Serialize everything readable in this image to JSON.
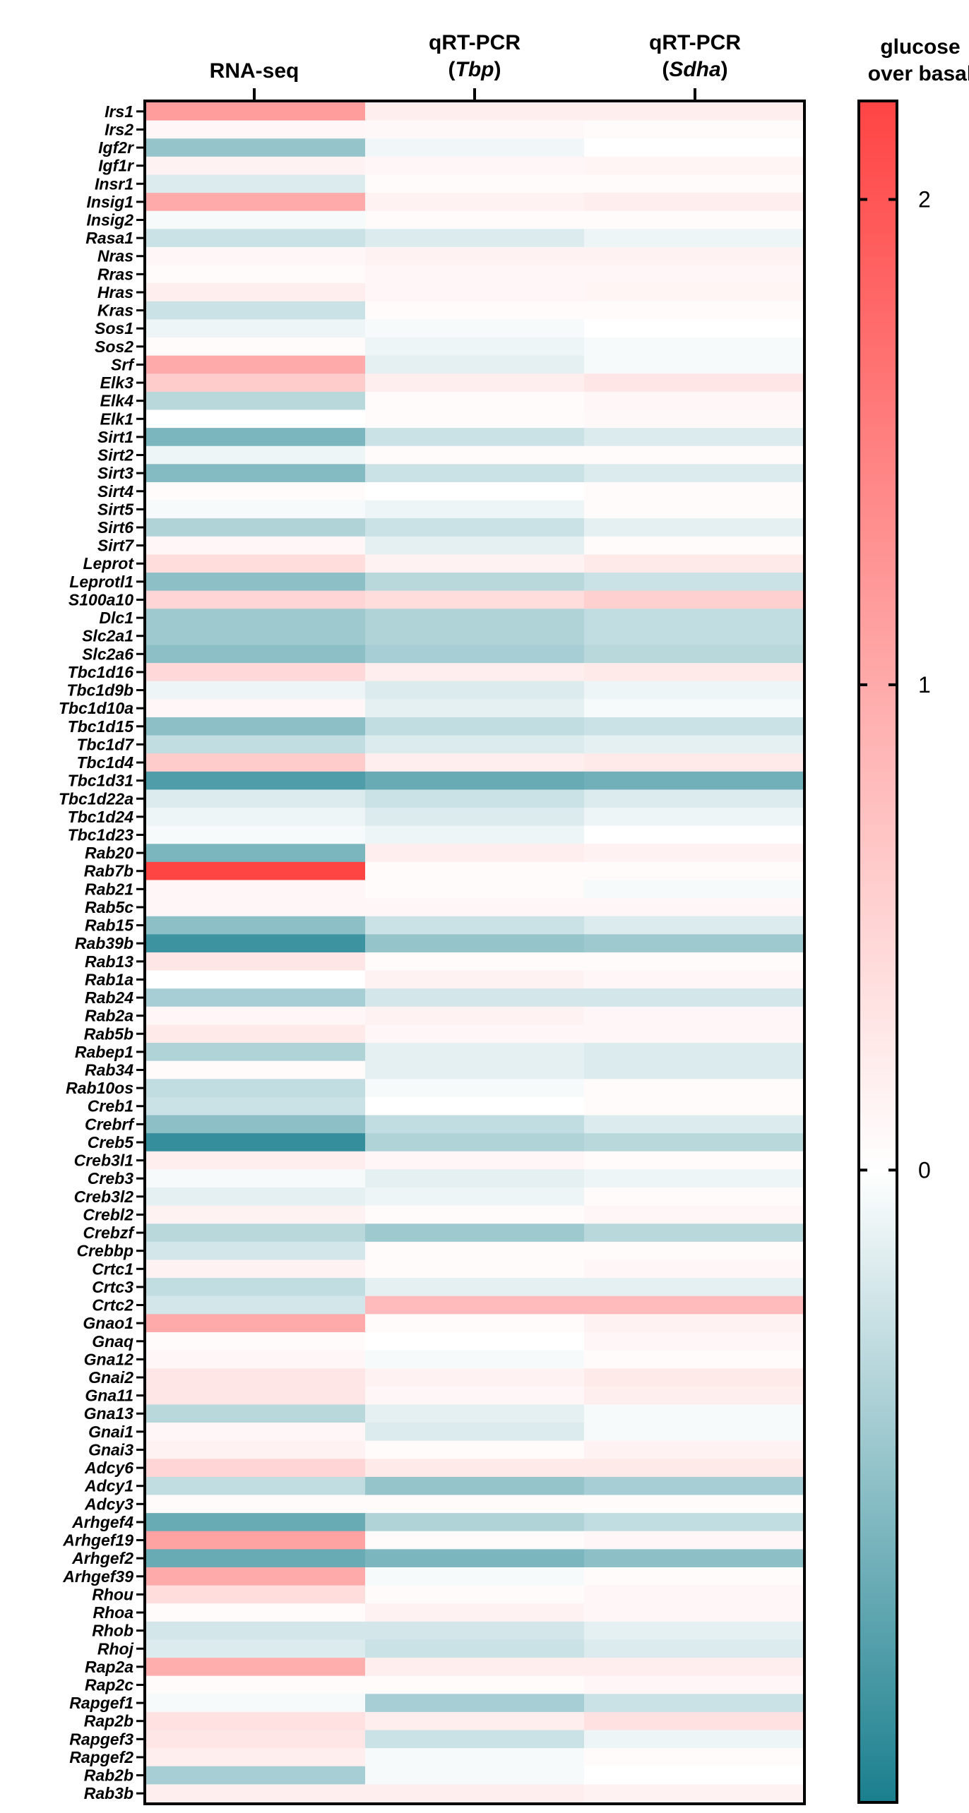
{
  "chart_data": {
    "type": "heatmap",
    "title": "",
    "columns": [
      {
        "line1": "RNA-seq",
        "line2_open": "",
        "line2_italic": "",
        "line2_close": ""
      },
      {
        "line1": "qRT-PCR",
        "line2_open": "(",
        "line2_italic": "Tbp",
        "line2_close": ")"
      },
      {
        "line1": "qRT-PCR",
        "line2_open": "(",
        "line2_italic": "Sdha",
        "line2_close": ")"
      }
    ],
    "rows": [
      "Irs1",
      "Irs2",
      "Igf2r",
      "Igf1r",
      "Insr1",
      "Insig1",
      "Insig2",
      "Rasa1",
      "Nras",
      "Rras",
      "Hras",
      "Kras",
      "Sos1",
      "Sos2",
      "Srf",
      "Elk3",
      "Elk4",
      "Elk1",
      "Sirt1",
      "Sirt2",
      "Sirt3",
      "Sirt4",
      "Sirt5",
      "Sirt6",
      "Sirt7",
      "Leprot",
      "Leprotl1",
      "S100a10",
      "Dlc1",
      "Slc2a1",
      "Slc2a6",
      "Tbc1d16",
      "Tbc1d9b",
      "Tbc1d10a",
      "Tbc1d15",
      "Tbc1d7",
      "Tbc1d4",
      "Tbc1d31",
      "Tbc1d22a",
      "Tbc1d24",
      "Tbc1d23",
      "Rab20",
      "Rab7b",
      "Rab21",
      "Rab5c",
      "Rab15",
      "Rab39b",
      "Rab13",
      "Rab1a",
      "Rab24",
      "Rab2a",
      "Rab5b",
      "Rabep1",
      "Rab34",
      "Rab10os",
      "Creb1",
      "Crebrf",
      "Creb5",
      "Creb3l1",
      "Creb3",
      "Creb3l2",
      "Crebl2",
      "Crebzf",
      "Crebbp",
      "Crtc1",
      "Crtc3",
      "Crtc2",
      "Gnao1",
      "Gnaq",
      "Gna12",
      "Gnai2",
      "Gna11",
      "Gna13",
      "Gnai1",
      "Gnai3",
      "Adcy6",
      "Adcy1",
      "Adcy3",
      "Arhgef4",
      "Arhgef19",
      "Arhgef2",
      "Arhgef39",
      "Rhou",
      "Rhoa",
      "Rhob",
      "Rhoj",
      "Rap2a",
      "Rap2c",
      "Rapgef1",
      "Rap2b",
      "Rapgef3",
      "Rapgef2",
      "Rab2b",
      "Rab3b"
    ],
    "values": [
      [
        1.15,
        0.2,
        0.2
      ],
      [
        0.1,
        0.08,
        0.05
      ],
      [
        -0.6,
        -0.08,
        0.0
      ],
      [
        0.15,
        0.1,
        0.12
      ],
      [
        -0.2,
        0.05,
        0.05
      ],
      [
        1.0,
        0.15,
        0.2
      ],
      [
        -0.05,
        0.05,
        0.05
      ],
      [
        -0.3,
        -0.2,
        -0.1
      ],
      [
        0.1,
        0.15,
        0.15
      ],
      [
        0.05,
        0.1,
        0.1
      ],
      [
        0.2,
        0.1,
        0.12
      ],
      [
        -0.3,
        0.05,
        0.05
      ],
      [
        -0.1,
        -0.05,
        0.0
      ],
      [
        0.05,
        -0.1,
        -0.05
      ],
      [
        1.0,
        -0.15,
        -0.05
      ],
      [
        0.6,
        0.2,
        0.3
      ],
      [
        -0.4,
        0.05,
        0.1
      ],
      [
        0.0,
        0.05,
        0.08
      ],
      [
        -0.75,
        -0.3,
        -0.2
      ],
      [
        -0.1,
        0.05,
        0.05
      ],
      [
        -0.7,
        -0.3,
        -0.2
      ],
      [
        0.05,
        0.0,
        0.05
      ],
      [
        -0.05,
        -0.1,
        0.05
      ],
      [
        -0.45,
        -0.3,
        -0.15
      ],
      [
        0.1,
        -0.15,
        0.05
      ],
      [
        0.4,
        0.15,
        0.25
      ],
      [
        -0.65,
        -0.4,
        -0.3
      ],
      [
        0.5,
        0.4,
        0.55
      ],
      [
        -0.55,
        -0.45,
        -0.35
      ],
      [
        -0.55,
        -0.45,
        -0.35
      ],
      [
        -0.65,
        -0.5,
        -0.4
      ],
      [
        0.45,
        0.2,
        0.25
      ],
      [
        -0.1,
        -0.2,
        -0.1
      ],
      [
        0.1,
        -0.15,
        -0.05
      ],
      [
        -0.65,
        -0.35,
        -0.3
      ],
      [
        -0.35,
        -0.2,
        -0.15
      ],
      [
        0.6,
        0.2,
        0.25
      ],
      [
        -1.0,
        -0.85,
        -0.8
      ],
      [
        -0.2,
        -0.3,
        -0.2
      ],
      [
        -0.1,
        -0.2,
        -0.1
      ],
      [
        -0.05,
        -0.1,
        0.0
      ],
      [
        -0.75,
        0.2,
        0.15
      ],
      [
        2.2,
        0.05,
        0.05
      ],
      [
        0.1,
        0.05,
        -0.05
      ],
      [
        0.1,
        0.1,
        0.1
      ],
      [
        -0.65,
        -0.3,
        -0.2
      ],
      [
        -1.1,
        -0.6,
        -0.55
      ],
      [
        0.3,
        0.05,
        0.05
      ],
      [
        0.0,
        0.15,
        0.1
      ],
      [
        -0.5,
        -0.25,
        -0.25
      ],
      [
        0.1,
        0.15,
        0.1
      ],
      [
        0.25,
        0.1,
        0.1
      ],
      [
        -0.45,
        -0.15,
        -0.2
      ],
      [
        0.05,
        -0.15,
        -0.2
      ],
      [
        -0.35,
        -0.05,
        0.05
      ],
      [
        -0.3,
        0.0,
        0.05
      ],
      [
        -0.65,
        -0.35,
        -0.2
      ],
      [
        -1.15,
        -0.45,
        -0.4
      ],
      [
        0.2,
        0.1,
        0.05
      ],
      [
        -0.05,
        -0.15,
        -0.1
      ],
      [
        -0.15,
        -0.1,
        0.05
      ],
      [
        0.15,
        0.05,
        0.1
      ],
      [
        -0.4,
        -0.55,
        -0.4
      ],
      [
        -0.25,
        0.05,
        0.05
      ],
      [
        0.15,
        0.05,
        0.1
      ],
      [
        -0.35,
        -0.15,
        -0.15
      ],
      [
        -0.25,
        0.8,
        0.8
      ],
      [
        1.0,
        0.05,
        0.15
      ],
      [
        0.05,
        0.0,
        0.1
      ],
      [
        0.1,
        -0.05,
        0.05
      ],
      [
        0.3,
        0.15,
        0.25
      ],
      [
        0.3,
        0.1,
        0.2
      ],
      [
        -0.4,
        -0.15,
        -0.05
      ],
      [
        0.1,
        -0.2,
        -0.05
      ],
      [
        0.15,
        0.05,
        0.15
      ],
      [
        0.5,
        0.25,
        0.25
      ],
      [
        -0.35,
        -0.6,
        -0.5
      ],
      [
        0.05,
        0.05,
        0.05
      ],
      [
        -0.85,
        -0.45,
        -0.35
      ],
      [
        1.1,
        0.05,
        0.1
      ],
      [
        -0.85,
        -0.75,
        -0.65
      ],
      [
        1.0,
        -0.05,
        0.05
      ],
      [
        0.4,
        0.05,
        0.1
      ],
      [
        0.05,
        0.15,
        0.1
      ],
      [
        -0.25,
        -0.25,
        -0.15
      ],
      [
        -0.2,
        -0.3,
        -0.2
      ],
      [
        0.95,
        0.2,
        0.2
      ],
      [
        0.05,
        0.05,
        0.1
      ],
      [
        -0.05,
        -0.5,
        -0.3
      ],
      [
        0.35,
        0.2,
        0.35
      ],
      [
        0.3,
        -0.3,
        -0.1
      ],
      [
        0.2,
        -0.05,
        0.05
      ],
      [
        -0.5,
        -0.05,
        0.0
      ],
      [
        0.2,
        0.2,
        0.15
      ]
    ],
    "colorbar": {
      "label_line1": "glucose",
      "label_line2": "over basal",
      "min": -1.3,
      "max": 2.2,
      "ticks": [
        0,
        1,
        2
      ],
      "low_color": "#1a7f8e",
      "mid_color": "#ffffff",
      "high_color": "#ff4444"
    }
  }
}
